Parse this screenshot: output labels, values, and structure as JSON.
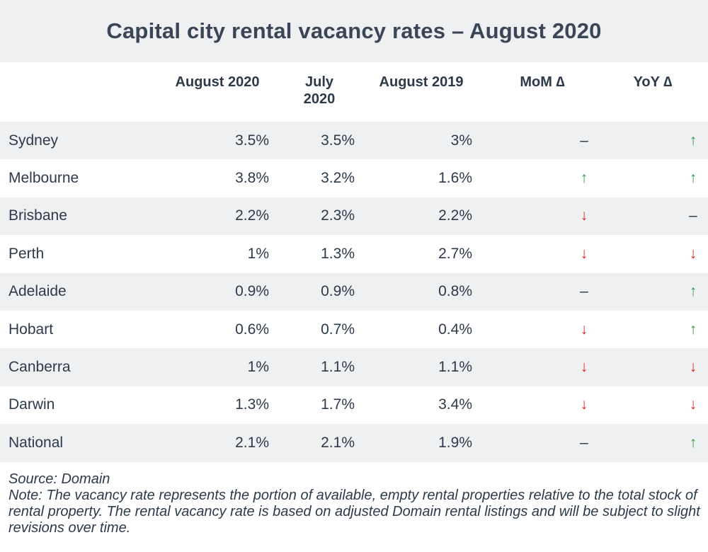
{
  "title": "Capital city rental vacancy rates – August 2020",
  "headers": {
    "col1": "August 2020",
    "col2": "July 2020",
    "col3": "August 2019",
    "col4": "MoM ∆",
    "col5": "YoY ∆"
  },
  "chart_data": {
    "type": "table",
    "columns": [
      "August 2020",
      "July 2020",
      "August 2019",
      "MoM ∆",
      "YoY ∆"
    ],
    "rows": [
      {
        "city": "Sydney",
        "aug2020": "3.5%",
        "jul2020": "3.5%",
        "aug2019": "3%",
        "mom": "–",
        "yoy": "↑"
      },
      {
        "city": "Melbourne",
        "aug2020": "3.8%",
        "jul2020": "3.2%",
        "aug2019": "1.6%",
        "mom": "↑",
        "yoy": "↑"
      },
      {
        "city": "Brisbane",
        "aug2020": "2.2%",
        "jul2020": "2.3%",
        "aug2019": "2.2%",
        "mom": "↓",
        "yoy": "–"
      },
      {
        "city": "Perth",
        "aug2020": "1%",
        "jul2020": "1.3%",
        "aug2019": "2.7%",
        "mom": "↓",
        "yoy": "↓"
      },
      {
        "city": "Adelaide",
        "aug2020": "0.9%",
        "jul2020": "0.9%",
        "aug2019": "0.8%",
        "mom": "–",
        "yoy": "↑"
      },
      {
        "city": "Hobart",
        "aug2020": "0.6%",
        "jul2020": "0.7%",
        "aug2019": "0.4%",
        "mom": "↓",
        "yoy": "↑"
      },
      {
        "city": "Canberra",
        "aug2020": "1%",
        "jul2020": "1.1%",
        "aug2019": "1.1%",
        "mom": "↓",
        "yoy": "↓"
      },
      {
        "city": "Darwin",
        "aug2020": "1.3%",
        "jul2020": "1.7%",
        "aug2019": "3.4%",
        "mom": "↓",
        "yoy": "↓"
      },
      {
        "city": "National",
        "aug2020": "2.1%",
        "jul2020": "2.1%",
        "aug2019": "1.9%",
        "mom": "–",
        "yoy": "↑"
      }
    ]
  },
  "colors": {
    "up": "#2e9a4f",
    "down": "#e0201b",
    "shade": "#eef0f2",
    "text": "#2d3a4a"
  },
  "footer": {
    "source": "Source: Domain",
    "note": "Note: The vacancy rate represents the portion of available, empty rental properties relative to the total stock of rental property. The rental vacancy rate is based on adjusted Domain rental listings and will be subject to slight revisions over time."
  }
}
